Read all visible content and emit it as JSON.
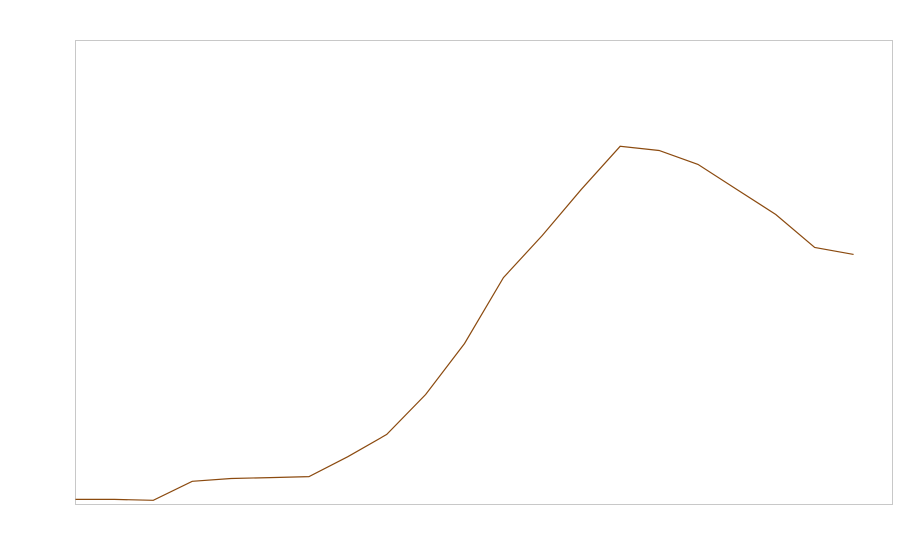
{
  "chart_data": {
    "type": "line",
    "x": [
      0,
      1,
      2,
      3,
      4,
      5,
      6,
      7,
      8,
      9,
      10,
      11,
      12,
      13,
      14,
      15,
      16,
      17,
      18,
      19,
      20
    ],
    "series": [
      {
        "color": "#8b4a0f",
        "values": [
          1.1,
          1.1,
          0.9,
          5.0,
          5.6,
          5.8,
          6.0,
          10.3,
          15.1,
          23.7,
          34.7,
          48.9,
          58.0,
          67.9,
          77.2,
          76.3,
          73.3,
          67.9,
          62.5,
          55.4,
          53.9
        ]
      }
    ],
    "xlim": [
      0,
      21
    ],
    "ylim": [
      0,
      100
    ]
  }
}
